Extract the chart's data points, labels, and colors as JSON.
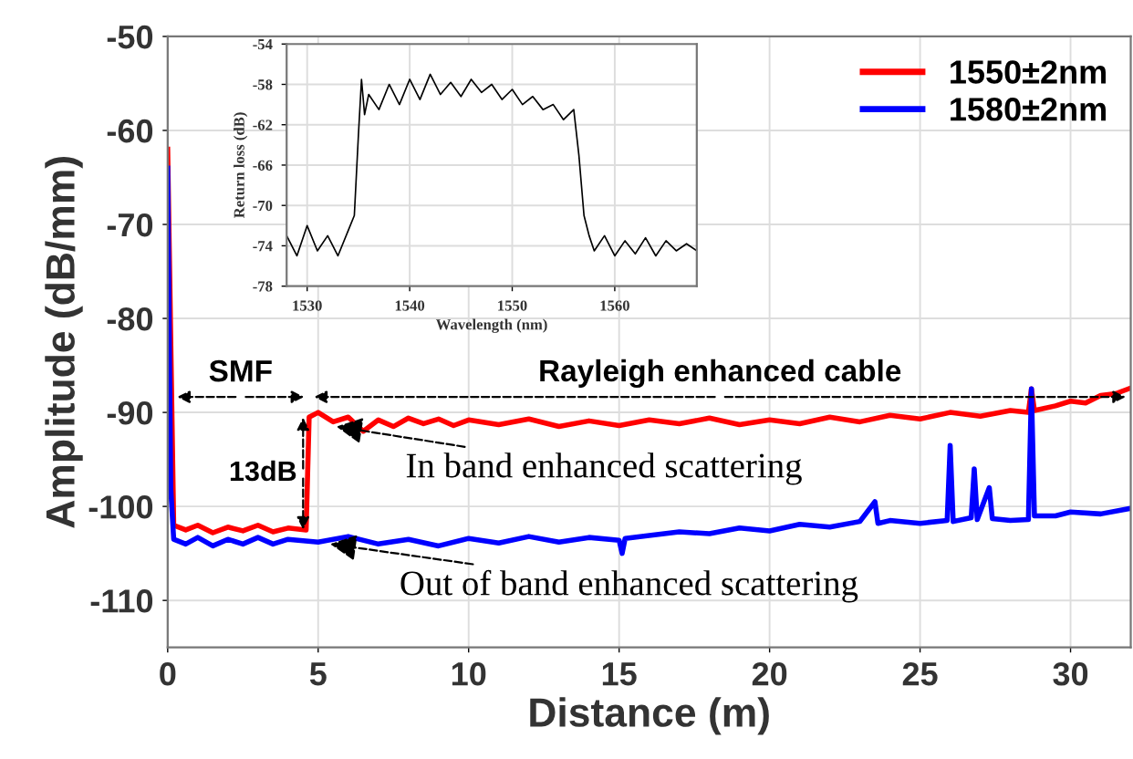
{
  "chart_data": [
    {
      "type": "line",
      "xlabel": "Distance (m)",
      "ylabel": "Amplitude (dB/mm)",
      "xlim": [
        0,
        32
      ],
      "ylim": [
        -115,
        -50
      ],
      "xticks": [
        0,
        5,
        10,
        15,
        20,
        25,
        30
      ],
      "yticks": [
        -110,
        -100,
        -90,
        -80,
        -70,
        -60,
        -50
      ],
      "grid": true,
      "legend": "top right",
      "annotations": [
        "SMF",
        "Rayleigh enhanced cable",
        {
          "text": "13dB",
          "x": 4.5,
          "y": -96.5
        },
        {
          "text": "In band enhanced scattering",
          "x": 5.6,
          "y": -91.5
        },
        {
          "text": "Out of band enhanced scattering",
          "x": 5.4,
          "y": -104
        }
      ],
      "series": [
        {
          "name": "1550±2nm",
          "color": "#ff0000",
          "x": [
            0,
            0.2,
            0.6,
            1,
            1.5,
            2,
            2.5,
            3,
            3.5,
            4,
            4.6,
            4.7,
            5,
            5.5,
            6,
            6.5,
            7,
            7.5,
            8,
            8.5,
            9,
            9.5,
            10,
            11,
            12,
            13,
            14,
            15,
            16,
            17,
            18,
            19,
            20,
            21,
            22,
            23,
            24,
            25,
            26,
            27,
            28,
            28.6,
            28.7,
            28.8,
            29.5,
            30,
            30.5,
            31,
            31.5,
            32
          ],
          "values": [
            -62,
            -102,
            -102.5,
            -102,
            -102.8,
            -102.2,
            -102.6,
            -102,
            -102.7,
            -102.3,
            -102.5,
            -90.5,
            -90,
            -91,
            -90.5,
            -92,
            -90.8,
            -91.5,
            -90.6,
            -91.2,
            -90.7,
            -91.4,
            -90.8,
            -91.3,
            -90.7,
            -91.5,
            -90.9,
            -91.4,
            -90.8,
            -91.2,
            -90.6,
            -91.3,
            -90.8,
            -91.2,
            -90.5,
            -91,
            -90.3,
            -90.7,
            -90,
            -90.4,
            -89.8,
            -90,
            -87.5,
            -89.8,
            -89.3,
            -88.8,
            -89,
            -88.2,
            -88,
            -87.4
          ]
        },
        {
          "name": "1580±2nm",
          "color": "#0000ff",
          "x": [
            0,
            0.1,
            0.2,
            0.6,
            1,
            1.5,
            2,
            2.5,
            3,
            3.5,
            4,
            5,
            6,
            7,
            8,
            9,
            10,
            11,
            12,
            13,
            14,
            15,
            15.1,
            15.2,
            16,
            17,
            18,
            19,
            20,
            21,
            22,
            23,
            23.5,
            23.6,
            24,
            25,
            25.9,
            26,
            26.1,
            26.7,
            26.8,
            26.9,
            27.3,
            27.4,
            28,
            28.6,
            28.7,
            28.8,
            29.5,
            30,
            31,
            32
          ],
          "values": [
            -64,
            -98,
            -103.5,
            -104,
            -103.3,
            -104.2,
            -103.5,
            -104,
            -103.3,
            -104,
            -103.5,
            -103.8,
            -103.2,
            -104,
            -103.5,
            -104.2,
            -103.4,
            -103.9,
            -103.2,
            -103.8,
            -103.3,
            -103.6,
            -105,
            -103.4,
            -103.1,
            -102.7,
            -102.9,
            -102.3,
            -102.6,
            -101.9,
            -102.2,
            -101.6,
            -99.5,
            -101.8,
            -101.5,
            -101.8,
            -101.5,
            -93.5,
            -101.6,
            -101.2,
            -96,
            -101.4,
            -98,
            -101.3,
            -101.5,
            -101.4,
            -87.5,
            -101,
            -101,
            -100.6,
            -100.8,
            -100.2
          ]
        }
      ]
    },
    {
      "type": "line",
      "xlabel": "Wavelength (nm)",
      "ylabel": "Return loss (dB)",
      "xlim": [
        1528,
        1568
      ],
      "ylim": [
        -78,
        -54
      ],
      "xticks": [
        1530,
        1540,
        1550,
        1560
      ],
      "yticks": [
        -78,
        -74,
        -70,
        -66,
        -62,
        -58,
        -54
      ],
      "grid": true,
      "series": [
        {
          "color": "#000000",
          "x": [
            1528,
            1529,
            1530,
            1531,
            1532,
            1533,
            1534,
            1534.6,
            1535,
            1535.3,
            1535.6,
            1536,
            1537,
            1538,
            1539,
            1540,
            1541,
            1542,
            1543,
            1544,
            1545,
            1546,
            1547,
            1548,
            1549,
            1550,
            1551,
            1552,
            1553,
            1554,
            1555,
            1556,
            1556.5,
            1557,
            1557.5,
            1558,
            1559,
            1560,
            1561,
            1562,
            1563,
            1564,
            1565,
            1566,
            1567,
            1568
          ],
          "values": [
            -73,
            -75,
            -72,
            -74.5,
            -73,
            -75,
            -72.5,
            -71,
            -63,
            -57.5,
            -61,
            -59,
            -60.5,
            -58,
            -60,
            -57.5,
            -59.5,
            -57,
            -59,
            -57.8,
            -59.2,
            -57.5,
            -58.8,
            -58,
            -59.5,
            -58.5,
            -60,
            -59.2,
            -60.5,
            -60,
            -61.5,
            -60.5,
            -65,
            -71,
            -73,
            -74.5,
            -73,
            -75,
            -73.5,
            -74.8,
            -73.2,
            -75,
            -73.5,
            -74.5,
            -73.8,
            -74.5
          ]
        }
      ]
    }
  ]
}
